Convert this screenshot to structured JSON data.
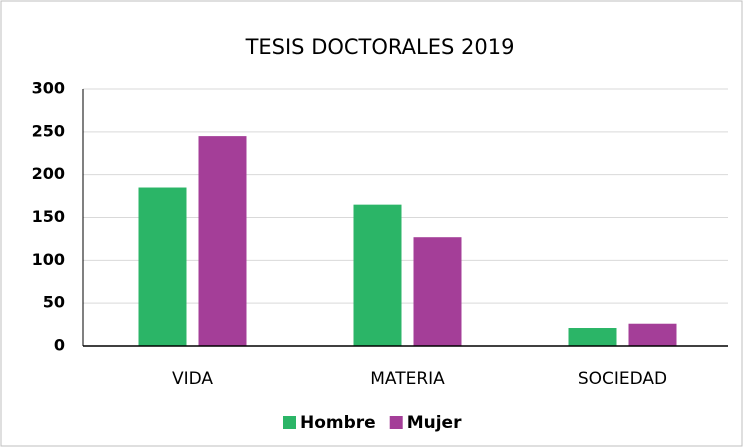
{
  "chart_data": {
    "type": "bar",
    "title": "TESIS DOCTORALES 2019",
    "categories": [
      "VIDA",
      "MATERIA",
      "SOCIEDAD"
    ],
    "series": [
      {
        "name": "Hombre",
        "color": "#2bb567",
        "values": [
          185,
          165,
          21
        ]
      },
      {
        "name": "Mujer",
        "color": "#a43e98",
        "values": [
          245,
          127,
          26
        ]
      }
    ],
    "ylim": [
      0,
      300
    ],
    "yticks": [
      0,
      50,
      100,
      150,
      200,
      250,
      300
    ],
    "grid": true,
    "legend": "bottom"
  }
}
